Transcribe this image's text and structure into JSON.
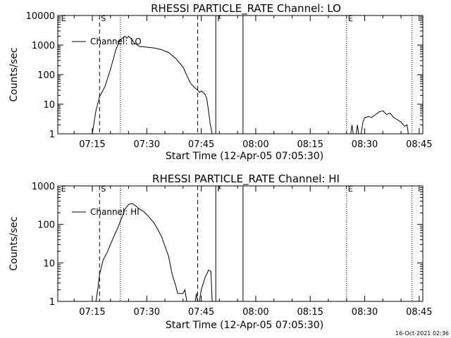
{
  "footer_stamp": "16-Oct-2021 02:36",
  "chart_data": [
    {
      "type": "line",
      "title": "RHESSI PARTICLE_RATE Channel: LO",
      "xlabel": "Start Time (12-Apr-05 07:05:30)",
      "ylabel": "Counts/sec",
      "yscale": "log",
      "ylim": [
        1,
        10000
      ],
      "y_ticks": [
        1,
        10,
        100,
        1000,
        10000
      ],
      "y_tick_labels": [
        "1",
        "10",
        "100",
        "1000",
        "10000"
      ],
      "xlim": [
        "07:05:30",
        "08:46:00"
      ],
      "x_ticks": [
        "07:15",
        "07:30",
        "07:45",
        "08:00",
        "08:15",
        "08:30",
        "08:45"
      ],
      "legend": {
        "label": "Channel: LO",
        "position": "top-left"
      },
      "series": [
        {
          "name": "Channel: LO",
          "segments": [
            [
              [
                "07:15:00",
                1
              ],
              [
                "07:16:00",
                6
              ],
              [
                "07:17:00",
                18
              ],
              [
                "07:18:30",
                40
              ],
              [
                "07:20:00",
                150
              ],
              [
                "07:21:30",
                700
              ],
              [
                "07:22:30",
                1400
              ],
              [
                "07:23:30",
                1800
              ],
              [
                "07:24:00",
                2000
              ],
              [
                "07:24:30",
                1700
              ],
              [
                "07:25:00",
                2000
              ],
              [
                "07:26:00",
                1500
              ],
              [
                "07:26:30",
                1200
              ],
              [
                "07:28:00",
                900
              ],
              [
                "07:30:00",
                850
              ],
              [
                "07:32:00",
                800
              ],
              [
                "07:34:00",
                700
              ],
              [
                "07:36:00",
                560
              ],
              [
                "07:38:00",
                350
              ],
              [
                "07:40:00",
                180
              ],
              [
                "07:41:00",
                95
              ],
              [
                "07:42:00",
                52
              ],
              [
                "07:43:00",
                38
              ],
              [
                "07:44:00",
                30
              ],
              [
                "07:44:30",
                25
              ],
              [
                "07:45:00",
                28
              ],
              [
                "07:46:00",
                22
              ],
              [
                "07:46:30",
                16
              ],
              [
                "07:47:00",
                6
              ],
              [
                "07:47:30",
                2
              ],
              [
                "07:48:00",
                1
              ]
            ],
            [
              [
                "08:26:10",
                1
              ],
              [
                "08:26:30",
                2
              ],
              [
                "08:26:50",
                1
              ]
            ],
            [
              [
                "08:27:40",
                1
              ],
              [
                "08:28:00",
                2
              ],
              [
                "08:28:20",
                1
              ]
            ],
            [
              [
                "08:29:00",
                1
              ],
              [
                "08:29:30",
                2.5
              ],
              [
                "08:30:00",
                3.5
              ],
              [
                "08:31:00",
                3.8
              ],
              [
                "08:32:00",
                3.6
              ],
              [
                "08:33:00",
                4.5
              ],
              [
                "08:34:00",
                5.5
              ],
              [
                "08:35:00",
                6
              ],
              [
                "08:36:00",
                4.5
              ],
              [
                "08:37:00",
                5
              ],
              [
                "08:38:00",
                3.5
              ],
              [
                "08:39:00",
                3
              ],
              [
                "08:40:00",
                2.5
              ],
              [
                "08:41:00",
                1.8
              ],
              [
                "08:41:40",
                2
              ],
              [
                "08:42:00",
                1
              ]
            ]
          ]
        }
      ],
      "annotations": [
        {
          "text": "E",
          "time": "07:06:00",
          "line": "none"
        },
        {
          "text": "S",
          "time": "07:17:00",
          "line": "dashed"
        },
        {
          "text": "",
          "time": "07:22:45",
          "line": "dotted"
        },
        {
          "text": "",
          "time": "07:44:00",
          "line": "dashed"
        },
        {
          "text": "F",
          "time": "07:49:00",
          "line": "solid"
        },
        {
          "text": "",
          "time": "07:56:30",
          "line": "solid"
        },
        {
          "text": "E",
          "time": "08:25:00",
          "line": "dotted"
        },
        {
          "text": "",
          "time": "08:43:00",
          "line": "dotted"
        }
      ]
    },
    {
      "type": "line",
      "title": "RHESSI PARTICLE_RATE Channel: HI",
      "xlabel": "Start Time (12-Apr-05 07:05:30)",
      "ylabel": "Counts/sec",
      "yscale": "log",
      "ylim": [
        1,
        1000
      ],
      "y_ticks": [
        1,
        10,
        100,
        1000
      ],
      "y_tick_labels": [
        "1",
        "10",
        "100",
        "1000"
      ],
      "xlim": [
        "07:05:30",
        "08:46:00"
      ],
      "x_ticks": [
        "07:15",
        "07:30",
        "07:45",
        "08:00",
        "08:15",
        "08:30",
        "08:45"
      ],
      "legend": {
        "label": "Channel: HI",
        "position": "top-left"
      },
      "series": [
        {
          "name": "Channel: HI",
          "segments": [
            [
              [
                "07:16:00",
                1
              ],
              [
                "07:16:30",
                2
              ],
              [
                "07:17:00",
                5
              ],
              [
                "07:18:00",
                12
              ],
              [
                "07:19:00",
                18
              ],
              [
                "07:20:00",
                30
              ],
              [
                "07:21:00",
                50
              ],
              [
                "07:22:00",
                80
              ],
              [
                "07:23:00",
                140
              ],
              [
                "07:24:00",
                250
              ],
              [
                "07:25:00",
                330
              ],
              [
                "07:26:00",
                350
              ],
              [
                "07:27:00",
                300
              ],
              [
                "07:28:00",
                250
              ],
              [
                "07:29:00",
                220
              ],
              [
                "07:30:00",
                180
              ],
              [
                "07:32:00",
                110
              ],
              [
                "07:34:00",
                50
              ],
              [
                "07:36:00",
                15
              ],
              [
                "07:37:00",
                5
              ],
              [
                "07:38:00",
                2.5
              ],
              [
                "07:38:30",
                1.6
              ],
              [
                "07:40:00",
                1.6
              ],
              [
                "07:40:30",
                2
              ],
              [
                "07:41:00",
                1
              ]
            ],
            [
              [
                "07:43:20",
                1
              ],
              [
                "07:43:40",
                1.6
              ],
              [
                "07:44:00",
                1
              ]
            ],
            [
              [
                "07:44:30",
                1
              ],
              [
                "07:45:00",
                2
              ],
              [
                "07:46:00",
                4
              ],
              [
                "07:47:00",
                6.5
              ],
              [
                "07:47:40",
                6
              ],
              [
                "07:48:00",
                1
              ]
            ]
          ]
        }
      ],
      "annotations": [
        {
          "text": "E",
          "time": "07:06:00",
          "line": "none"
        },
        {
          "text": "S",
          "time": "07:17:00",
          "line": "dashed"
        },
        {
          "text": "",
          "time": "07:22:45",
          "line": "dotted"
        },
        {
          "text": "",
          "time": "07:44:00",
          "line": "dashed"
        },
        {
          "text": "F",
          "time": "07:49:00",
          "line": "solid"
        },
        {
          "text": "",
          "time": "07:56:30",
          "line": "solid"
        },
        {
          "text": "E",
          "time": "08:25:00",
          "line": "dotted"
        },
        {
          "text": "",
          "time": "08:43:00",
          "line": "dotted"
        }
      ]
    }
  ]
}
